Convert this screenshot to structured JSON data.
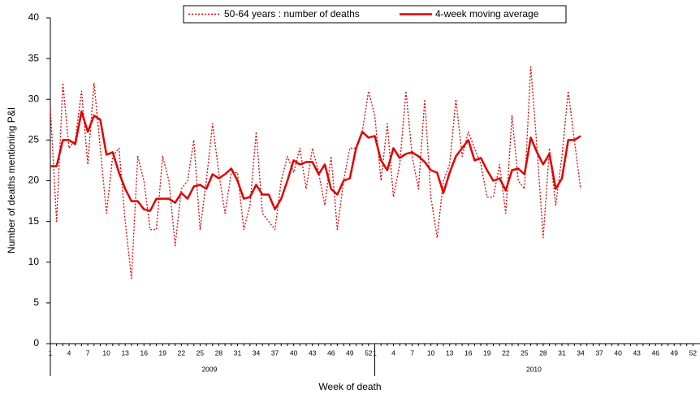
{
  "chart_data": {
    "type": "line",
    "x_label": "Week of death",
    "y_label": "Number of deaths mentioning P&I",
    "categories": [
      "1",
      null,
      null,
      "4",
      null,
      null,
      "7",
      null,
      null,
      "10",
      null,
      null,
      "13",
      null,
      null,
      "16",
      null,
      null,
      "19",
      null,
      null,
      "22",
      null,
      null,
      "25",
      null,
      null,
      "28",
      null,
      null,
      "31",
      null,
      null,
      "34",
      null,
      null,
      "37",
      null,
      null,
      "40",
      null,
      null,
      "43",
      null,
      null,
      "46",
      null,
      null,
      "49",
      null,
      null,
      "52",
      "1",
      null,
      null,
      "4",
      null,
      null,
      "7",
      null,
      null,
      "10",
      null,
      null,
      "13",
      null,
      null,
      "16",
      null,
      null,
      "19",
      null,
      null,
      "22",
      null,
      null,
      "25",
      null,
      null,
      "28",
      null,
      null,
      "31",
      null,
      null,
      "34",
      null,
      null,
      "37",
      null,
      null,
      "40",
      null,
      null,
      "43",
      null,
      null,
      "46",
      null,
      null,
      "49",
      null,
      null,
      "52"
    ],
    "groups": [
      "2009",
      "2010"
    ],
    "series": [
      {
        "name": "50-64 years : number of deaths",
        "color": "#e00000",
        "style": "dotted",
        "values": [
          29,
          15,
          32,
          24,
          25,
          31,
          22,
          32,
          24,
          16,
          23,
          24,
          15,
          8,
          23,
          20,
          14,
          14,
          23,
          20,
          12,
          19,
          20,
          25,
          14,
          20,
          27,
          21,
          16,
          21,
          21,
          14,
          17,
          26,
          16,
          15,
          14,
          20,
          23,
          21,
          24,
          19,
          24,
          21,
          17,
          23,
          14,
          20,
          24,
          24,
          26,
          31,
          28,
          20,
          27,
          18,
          22,
          31,
          23,
          19,
          30,
          18,
          13,
          20,
          22,
          30,
          23,
          26,
          24,
          22,
          18,
          18,
          22,
          16,
          28,
          20,
          19,
          34,
          24,
          13,
          24,
          17,
          23,
          31,
          25,
          19,
          null,
          null,
          null,
          null,
          null,
          null,
          null,
          null,
          null,
          null,
          null,
          null,
          null,
          null,
          null,
          null,
          null,
          null
        ]
      },
      {
        "name": "4-week moving average",
        "color": "#e00000",
        "style": "solid",
        "values": [
          21.8,
          21.8,
          25,
          25,
          24.5,
          28.5,
          26,
          28,
          27.5,
          23.2,
          23.5,
          21,
          19,
          17.5,
          17.5,
          16.5,
          16.3,
          17.8,
          17.8,
          17.8,
          17.3,
          18.5,
          17.8,
          19.3,
          19.5,
          19,
          20.8,
          20.3,
          20.8,
          21.5,
          20,
          17.8,
          18,
          19.5,
          18.3,
          18.3,
          16.5,
          17.8,
          20,
          22.5,
          22,
          22.3,
          22.3,
          20.8,
          22,
          19,
          18.3,
          20,
          20.3,
          24,
          26,
          25.3,
          25.5,
          22.5,
          21.3,
          24,
          22.8,
          23.3,
          23.5,
          23,
          22.3,
          21.3,
          21,
          18.5,
          21,
          23,
          24,
          25,
          22.5,
          22.8,
          21.3,
          20,
          20.3,
          18.8,
          21.3,
          21.5,
          20.8,
          25.3,
          23.5,
          22,
          23.3,
          19,
          20.3,
          25,
          25,
          25.5,
          null,
          null,
          null,
          null,
          null,
          null,
          null,
          null,
          null,
          null,
          null,
          null,
          null,
          null,
          null,
          null,
          null,
          null
        ]
      }
    ],
    "ylim": [
      0,
      40
    ],
    "yticks": [
      0,
      5,
      10,
      15,
      20,
      25,
      30,
      35,
      40
    ],
    "grid": false,
    "legend_position": "top"
  }
}
